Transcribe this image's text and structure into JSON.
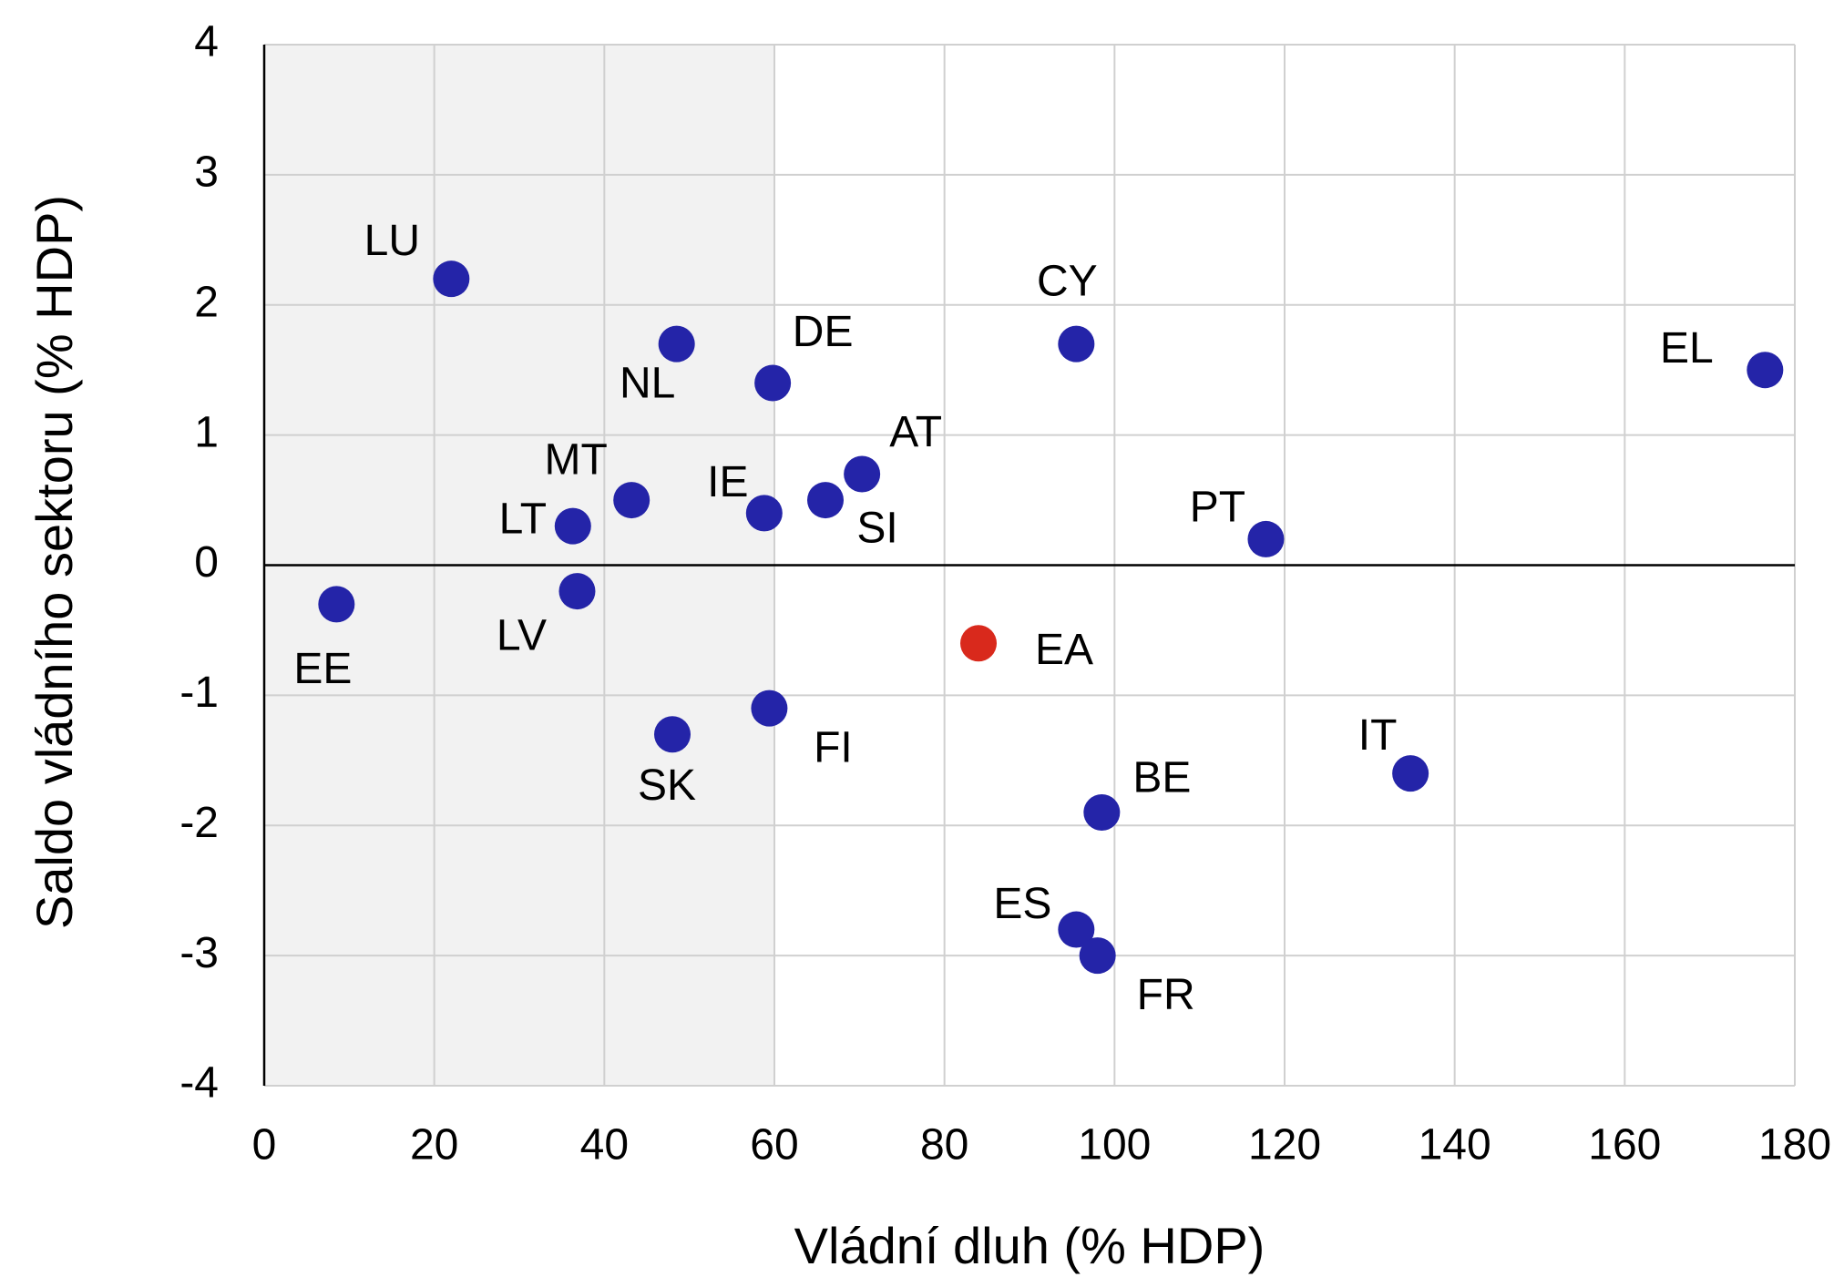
{
  "chart_data": {
    "type": "scatter",
    "x_label": "Vládní dluh (% HDP)",
    "y_label": "Saldo vládního sektoru (% HDP)",
    "labels": [
      "LU",
      "NL",
      "DE",
      "CY",
      "EL",
      "AT",
      "MT",
      "IE",
      "SI",
      "LT",
      "PT",
      "EE",
      "LV",
      "EA",
      "FI",
      "SK",
      "IT",
      "BE",
      "ES",
      "FR"
    ],
    "x": [
      22,
      48.5,
      59.8,
      95.5,
      176.5,
      70.3,
      43.2,
      58.8,
      66,
      36.3,
      117.8,
      8.5,
      36.8,
      84,
      59.4,
      48,
      134.8,
      98.5,
      95.5,
      98
    ],
    "values": [
      2.2,
      1.7,
      1.4,
      1.7,
      1.5,
      0.7,
      0.5,
      0.4,
      0.5,
      0.3,
      0.2,
      -0.3,
      -0.2,
      -0.6,
      -1.1,
      -1.3,
      -1.6,
      -1.9,
      -2.8,
      -3.0
    ],
    "colors": [
      "#2424a8",
      "#2424a8",
      "#2424a8",
      "#2424a8",
      "#2424a8",
      "#2424a8",
      "#2424a8",
      "#2424a8",
      "#2424a8",
      "#2424a8",
      "#2424a8",
      "#2424a8",
      "#2424a8",
      "#d9291c",
      "#2424a8",
      "#2424a8",
      "#2424a8",
      "#2424a8",
      "#2424a8",
      "#2424a8"
    ],
    "xlim": [
      0,
      180
    ],
    "xticks": [
      0,
      20,
      40,
      60,
      80,
      100,
      120,
      140,
      160,
      180
    ],
    "ylim": [
      -4,
      4
    ],
    "yticks": [
      -4,
      -3,
      -2,
      -1,
      0,
      1,
      2,
      3,
      4
    ],
    "highlight_x": [
      0,
      60
    ],
    "grid": true
  }
}
